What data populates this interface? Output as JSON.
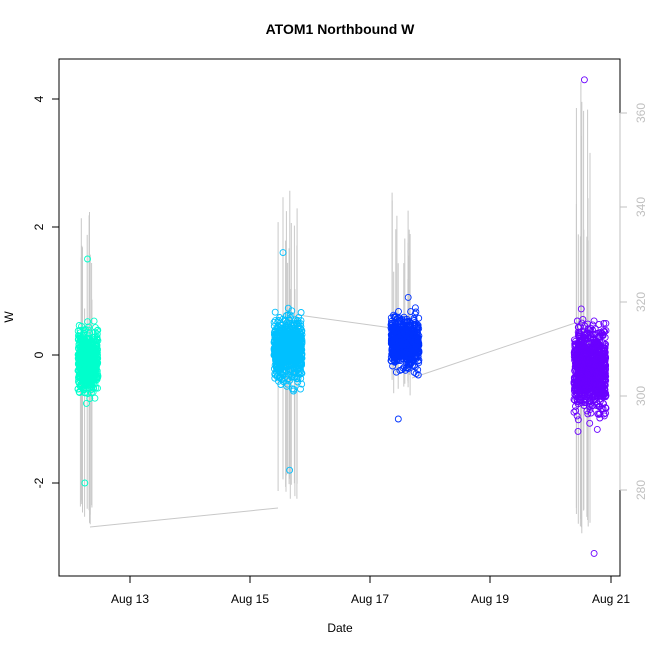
{
  "chart_data": {
    "type": "scatter",
    "title": "ATOM1 Northbound W",
    "xlabel": "Date",
    "ylabel": "W",
    "x_ticks": [
      "Aug 13",
      "Aug 15",
      "Aug 17",
      "Aug 19",
      "Aug 21"
    ],
    "y_ticks": [
      "-2",
      "0",
      "2",
      "4"
    ],
    "ylim": [
      -3.45,
      4.6
    ],
    "y2_ticks": [
      "280",
      "300",
      "320",
      "340",
      "360"
    ],
    "y2lim": [
      264.6,
      373.2
    ],
    "grid": false,
    "legend": "none",
    "series_colors": [
      "#00ffcc",
      "#00c0ff",
      "#0033ff",
      "#6a00ff"
    ],
    "secondary_line_color": "#c8c8c8",
    "clusters": [
      {
        "date": "Aug 12",
        "w_min": -2.0,
        "w_max": 1.5,
        "w_center": -0.1
      },
      {
        "date": "Aug 15",
        "w_min": -1.8,
        "w_max": 1.6,
        "w_center": 0.1
      },
      {
        "date": "Aug 17",
        "w_min": -1.0,
        "w_max": 0.9,
        "w_center": 0.2
      },
      {
        "date": "Aug 20",
        "w_min": -3.1,
        "w_max": 4.3,
        "w_center": -0.2
      }
    ],
    "secondary_series": [
      {
        "x": "Aug 12",
        "y": 274
      },
      {
        "x": "Aug 15",
        "y": 278
      },
      {
        "x": "Aug 15",
        "y": 317
      },
      {
        "x": "Aug 17",
        "y": 315
      },
      {
        "x": "Aug 17",
        "y": 303
      },
      {
        "x": "Aug 20",
        "y": 316
      }
    ]
  }
}
